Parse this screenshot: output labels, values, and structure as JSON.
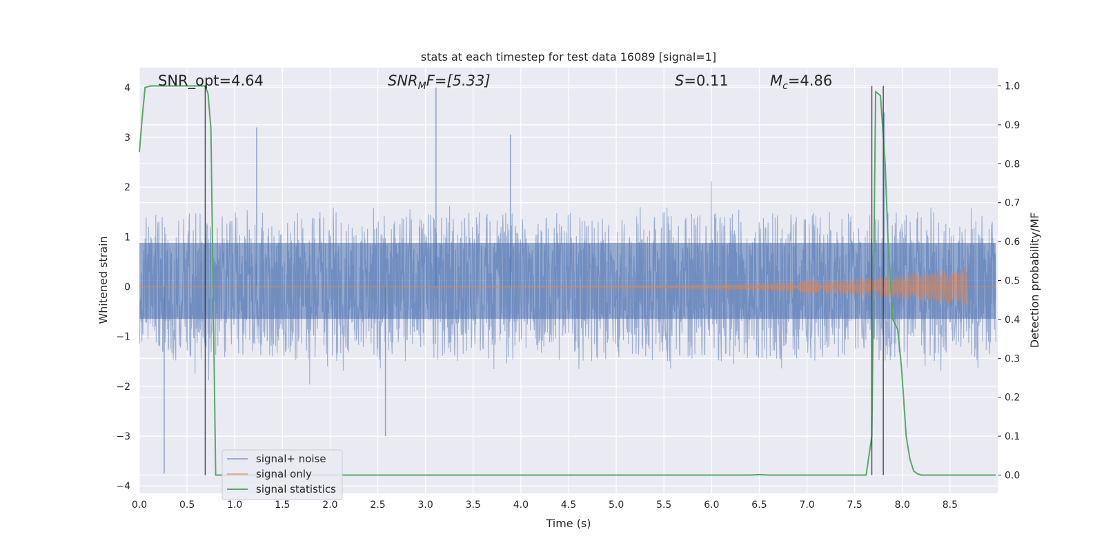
{
  "chart_data": {
    "type": "line",
    "title": "stats at each timestep for test data 16089 [signal=1]",
    "xlabel": "Time (s)",
    "ylabel_left": "Whitened strain",
    "ylabel_right": "Detection probability/MF",
    "xlim": [
      0.0,
      9.0
    ],
    "ylim_left": [
      -4.15,
      4.4
    ],
    "ylim_right": [
      -0.047,
      1.047
    ],
    "xticks": [
      "0.0",
      "0.5",
      "1.0",
      "1.5",
      "2.0",
      "2.5",
      "3.0",
      "3.5",
      "4.0",
      "4.5",
      "5.0",
      "5.5",
      "6.0",
      "6.5",
      "7.0",
      "7.5",
      "8.0",
      "8.5"
    ],
    "yticks_left": [
      "4",
      "3",
      "2",
      "1",
      "0",
      "−1",
      "−2",
      "−3",
      "−4"
    ],
    "yticks_right": [
      "1.0",
      "0.9",
      "0.8",
      "0.7",
      "0.6",
      "0.5",
      "0.4",
      "0.3",
      "0.2",
      "0.1",
      "0.0"
    ],
    "grid": true,
    "legend_placement": "lower-left",
    "annotations": {
      "snr_opt": "SNR_opt=4.64",
      "snr_mf_base": "SNR",
      "snr_mf_sub": "M",
      "snr_mf_rest": "F=[5.33]",
      "s_base": "S",
      "s_rest": "=0.11",
      "mc_base": "M",
      "mc_sub": "c",
      "mc_rest": "=4.86"
    },
    "vlines_x": [
      0.69,
      7.68,
      7.8
    ],
    "series": [
      {
        "name": "signal+ noise",
        "color": "#4c72b0",
        "axis": "left",
        "description_band": {
          "typical_min": -1.4,
          "typical_max": 1.5
        },
        "notable_peaks": [
          {
            "x": 3.11,
            "y": 4.0
          },
          {
            "x": 7.81,
            "y": 3.5
          },
          {
            "x": 1.23,
            "y": 3.2
          },
          {
            "x": 0.26,
            "y": -3.75
          },
          {
            "x": 2.58,
            "y": -3.0
          },
          {
            "x": 3.89,
            "y": 3.05
          }
        ]
      },
      {
        "name": "signal only",
        "color": "#dd8452",
        "axis": "left",
        "chirp": {
          "start_x": 0.0,
          "end_x": 8.68,
          "start_amp": 0.01,
          "peak_amp": 0.4
        }
      },
      {
        "name": "signal statistics",
        "color": "#55a868",
        "axis": "right",
        "x": [
          0.0,
          0.03,
          0.06,
          0.12,
          0.69,
          0.72,
          0.75,
          0.8,
          0.82,
          1.5,
          3.0,
          4.5,
          6.0,
          6.4,
          6.5,
          6.6,
          7.0,
          7.5,
          7.62,
          7.68,
          7.72,
          7.77,
          7.82,
          7.85,
          7.9,
          7.95,
          7.99,
          8.04,
          8.08,
          8.12,
          8.16,
          8.2,
          8.3,
          8.5,
          8.7,
          8.98
        ],
        "y": [
          0.83,
          0.92,
          0.996,
          1.0,
          1.0,
          0.98,
          0.89,
          0.0,
          0.0,
          0.0,
          0.0,
          0.0,
          0.0,
          0.0,
          0.001,
          0.0,
          0.0,
          0.0,
          0.0,
          0.1,
          0.985,
          0.975,
          0.8,
          0.6,
          0.4,
          0.375,
          0.28,
          0.1,
          0.04,
          0.01,
          0.003,
          0.0,
          0.0,
          0.0,
          0.0,
          0.0
        ]
      }
    ]
  }
}
